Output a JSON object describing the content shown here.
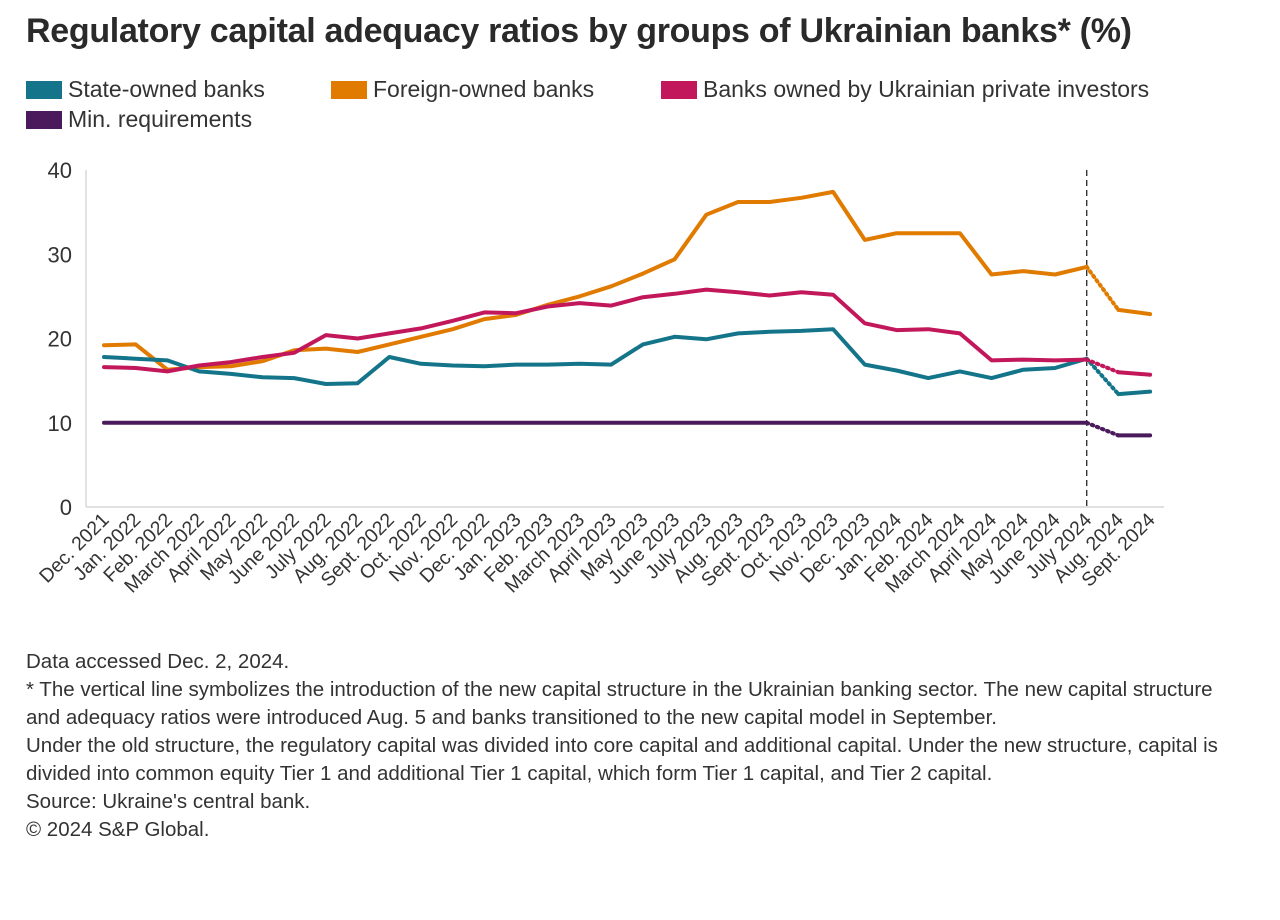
{
  "title": "Regulatory capital adequacy ratios by groups of Ukrainian banks* (%)",
  "legend": [
    {
      "label": "State-owned banks",
      "color": "#14758a"
    },
    {
      "label": "Foreign-owned banks",
      "color": "#e07b00"
    },
    {
      "label": "Banks owned by Ukrainian private investors",
      "color": "#c2185b"
    },
    {
      "label": "Min. requirements",
      "color": "#4a1a5c"
    }
  ],
  "chart_data": {
    "type": "line",
    "categories": [
      "Dec. 2021",
      "Jan. 2022",
      "Feb. 2022",
      "March 2022",
      "April 2022",
      "May 2022",
      "June 2022",
      "July 2022",
      "Aug. 2022",
      "Sept. 2022",
      "Oct. 2022",
      "Nov. 2022",
      "Dec. 2022",
      "Jan. 2023",
      "Feb. 2023",
      "March 2023",
      "April 2023",
      "May 2023",
      "June 2023",
      "July 2023",
      "Aug. 2023",
      "Sept. 2023",
      "Oct. 2023",
      "Nov. 2023",
      "Dec. 2023",
      "Jan. 2024",
      "Feb. 2024",
      "March 2024",
      "April 2024",
      "May 2024",
      "June 2024",
      "July 2024",
      "Aug. 2024",
      "Sept. 2024"
    ],
    "series": [
      {
        "name": "State-owned banks",
        "color": "#14758a",
        "values": [
          17.8,
          17.6,
          17.4,
          16.1,
          15.8,
          15.4,
          15.3,
          14.6,
          14.7,
          17.8,
          17.0,
          16.8,
          16.7,
          16.9,
          16.9,
          17.0,
          16.9,
          19.3,
          20.2,
          19.9,
          20.6,
          20.8,
          20.9,
          21.1,
          16.9,
          16.2,
          15.3,
          16.1,
          15.3,
          16.3,
          16.5,
          17.6,
          13.4,
          13.7
        ]
      },
      {
        "name": "Foreign-owned banks",
        "color": "#e07b00",
        "values": [
          19.2,
          19.3,
          16.3,
          16.6,
          16.7,
          17.3,
          18.6,
          18.8,
          18.4,
          19.3,
          20.2,
          21.1,
          22.3,
          22.8,
          24.0,
          25.0,
          26.2,
          27.7,
          29.4,
          34.7,
          36.2,
          36.2,
          36.7,
          37.4,
          31.7,
          32.5,
          32.5,
          32.5,
          27.6,
          28.0,
          27.6,
          28.5,
          23.4,
          22.9
        ]
      },
      {
        "name": "Banks owned by Ukrainian private investors",
        "color": "#c2185b",
        "values": [
          16.6,
          16.5,
          16.1,
          16.8,
          17.2,
          17.8,
          18.3,
          20.4,
          20.0,
          20.6,
          21.2,
          22.1,
          23.1,
          23.0,
          23.8,
          24.2,
          23.9,
          24.9,
          25.3,
          25.8,
          25.5,
          25.1,
          25.5,
          25.2,
          21.8,
          21.0,
          21.1,
          20.6,
          17.4,
          17.5,
          17.4,
          17.5,
          16.0,
          15.7
        ]
      },
      {
        "name": "Min. requirements",
        "color": "#4a1a5c",
        "values": [
          10,
          10,
          10,
          10,
          10,
          10,
          10,
          10,
          10,
          10,
          10,
          10,
          10,
          10,
          10,
          10,
          10,
          10,
          10,
          10,
          10,
          10,
          10,
          10,
          10,
          10,
          10,
          10,
          10,
          10,
          10,
          10,
          8.5,
          8.5
        ]
      }
    ],
    "yticks": [
      0,
      10,
      20,
      30,
      40
    ],
    "ylim": [
      0,
      40
    ],
    "reference_line_category": "July 2024",
    "dotted_from_category": "July 2024",
    "grid": false
  },
  "footnotes": [
    "Data accessed Dec. 2, 2024.",
    "* The vertical line symbolizes the introduction of the new capital structure in the Ukrainian banking sector. The new capital structure and adequacy ratios were introduced Aug. 5 and banks transitioned to the new capital model in September.",
    "Under the old structure, the regulatory capital was divided into core capital and additional capital. Under the new structure, capital is divided into common equity Tier 1 and additional Tier 1 capital, which form Tier 1 capital, and Tier 2 capital.",
    "Source: Ukraine's central bank.",
    "© 2024 S&P Global."
  ]
}
